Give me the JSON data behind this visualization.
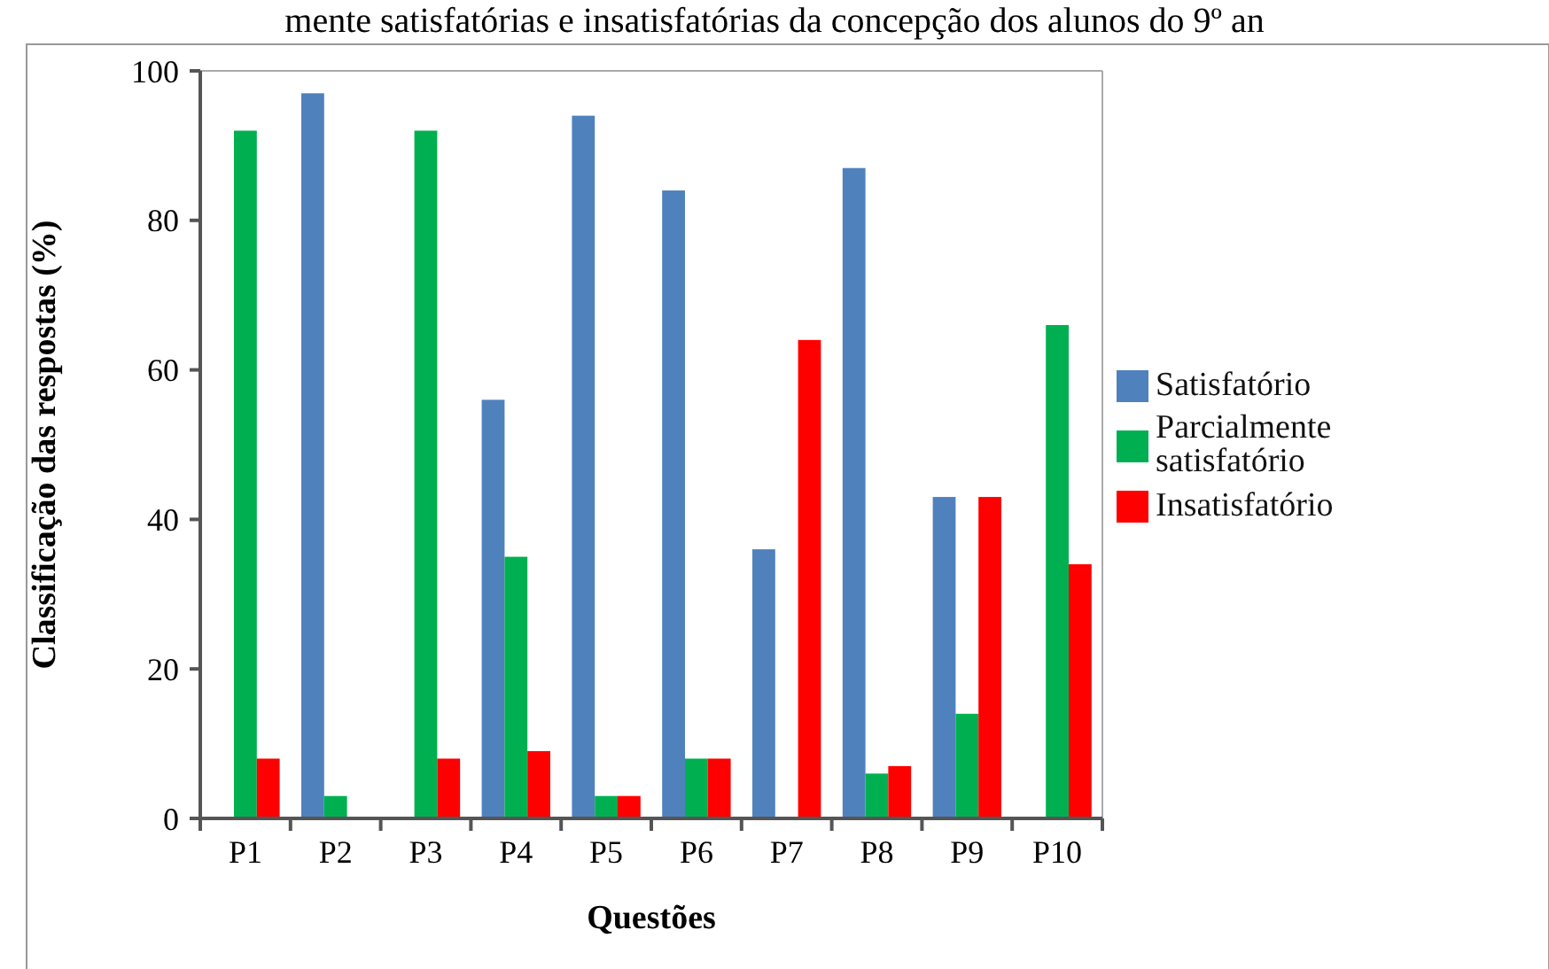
{
  "chart_data": {
    "type": "bar",
    "title": "mente satisfatórias e insatisfatórias da concepção dos alunos do 9º an",
    "xlabel": "Questões",
    "ylabel": "Classificação das respostas (%)",
    "categories": [
      "P1",
      "P2",
      "P3",
      "P4",
      "P5",
      "P6",
      "P7",
      "P8",
      "P9",
      "P10"
    ],
    "series": [
      {
        "name": "Satisfatório",
        "color": "#4f81bd",
        "values": [
          0,
          97,
          0,
          56,
          94,
          84,
          36,
          87,
          43,
          0
        ]
      },
      {
        "name": "Parcialmente satisfatório",
        "color": "#00b050",
        "values": [
          92,
          3,
          92,
          35,
          3,
          8,
          0,
          6,
          14,
          66
        ]
      },
      {
        "name": "Insatisfatório",
        "color": "#ff0000",
        "values": [
          8,
          0,
          8,
          9,
          3,
          8,
          64,
          7,
          43,
          34
        ]
      }
    ],
    "ylim": [
      0,
      100
    ],
    "yticks": [
      0,
      20,
      40,
      60,
      80,
      100
    ],
    "grid": false,
    "legend": "right"
  }
}
